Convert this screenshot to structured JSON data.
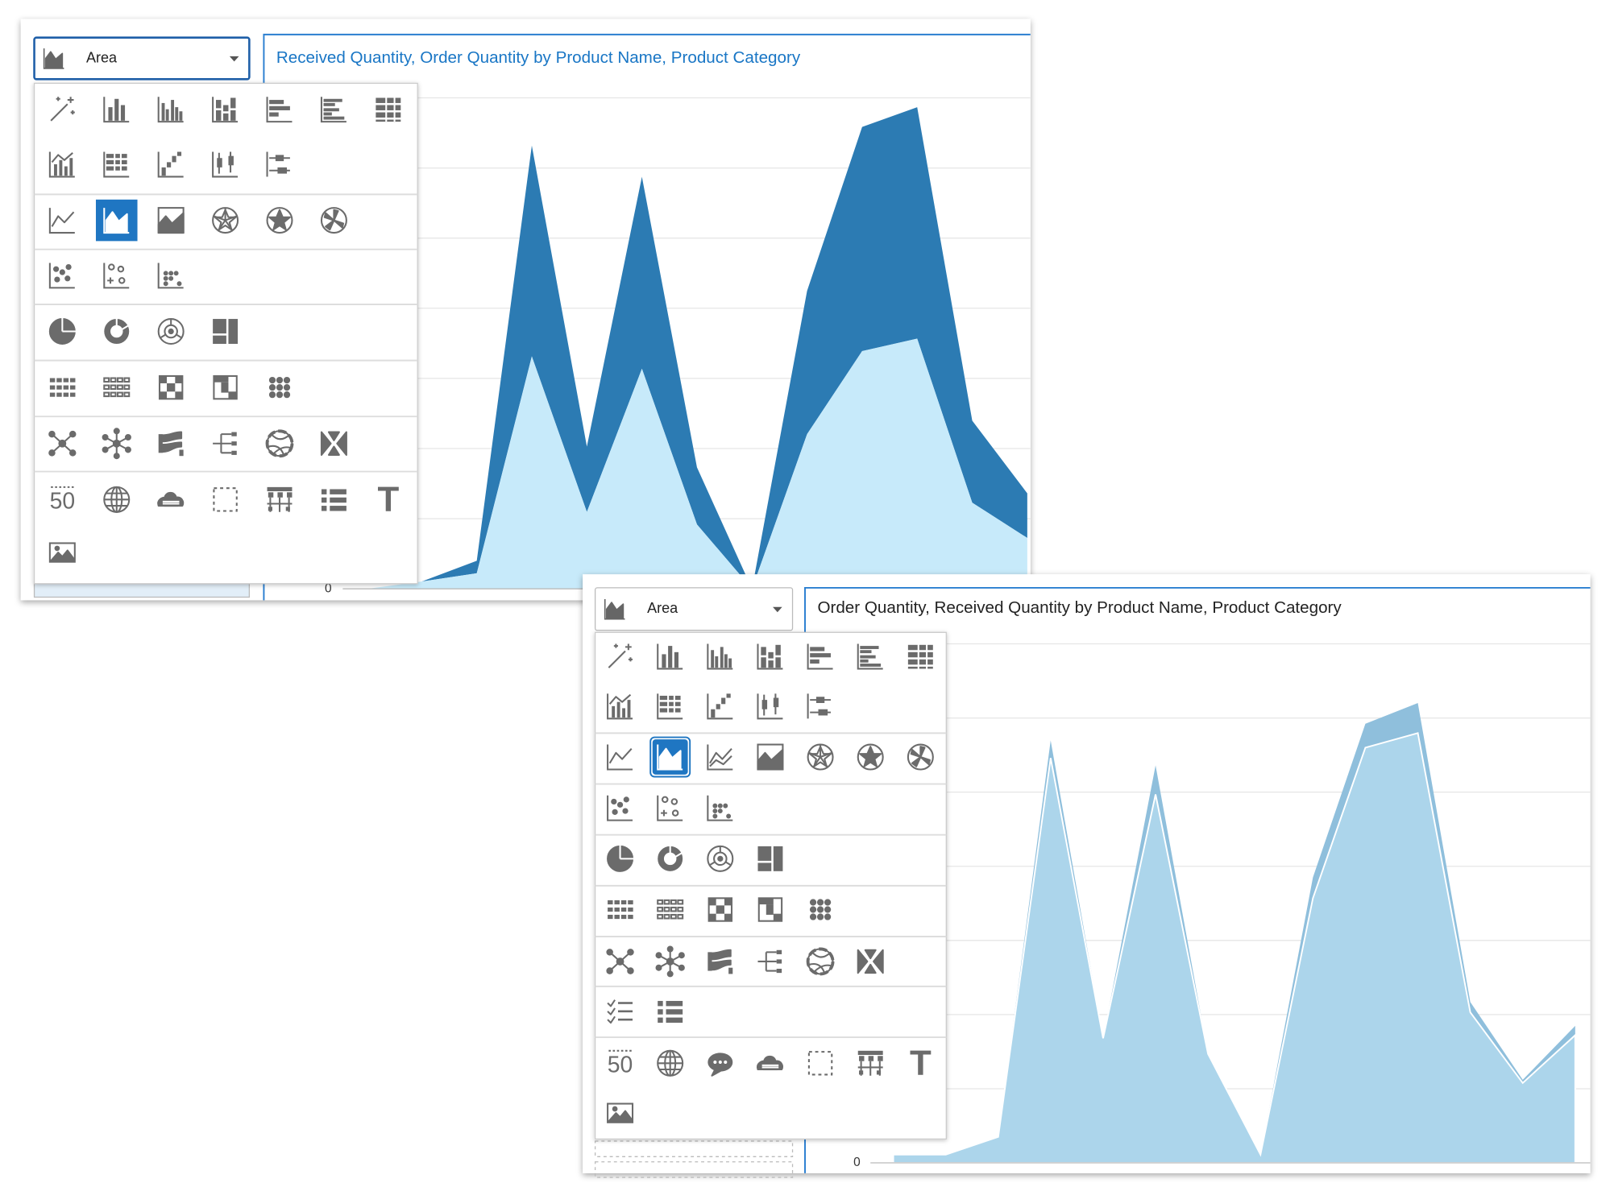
{
  "panels": [
    {
      "dropdown_label": "Area",
      "title": "Received Quantity, Order Quantity by Product Name, Product Category",
      "number_icon_label": "50",
      "text_icon_label": "T",
      "chart": {
        "type": "area",
        "ylim": [
          0,
          473
        ],
        "yticks": [
          0
        ],
        "series": [
          {
            "color": "#c7eafa",
            "values": [
              0,
              7,
              15,
              224,
              74,
              212,
              62,
              0,
              149,
              229,
              241,
              83,
              49
            ]
          },
          {
            "color": "#2c7bb3",
            "values": [
              0,
              0,
              12,
              203,
              63,
              185,
              55,
              0,
              138,
              216,
              223,
              79,
              43
            ]
          }
        ]
      }
    },
    {
      "dropdown_label": "Area",
      "title": "Order Quantity, Received Quantity by Product Name, Product Category",
      "number_icon_label": "50",
      "text_icon_label": "T",
      "chart": {
        "type": "area",
        "ylim": [
          0,
          500
        ],
        "yticks": [
          0
        ],
        "series": [
          {
            "color": "#acd5eb",
            "values": [
              8,
              8,
              25,
              390,
              120,
              355,
              105,
              8,
              255,
              400,
              414,
              145,
              77,
              123
            ]
          },
          {
            "color": "#8fbfdc",
            "values": [
              0,
              0,
              0,
              17,
              0,
              28,
              0,
              0,
              20,
              23,
              29,
              10,
              3,
              9
            ]
          }
        ]
      }
    }
  ]
}
